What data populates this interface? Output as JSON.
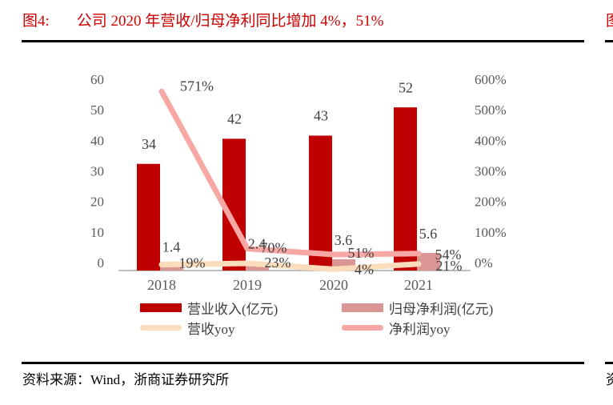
{
  "header": {
    "figure_label": "图4:",
    "title": "公司 2020 年营收/归母净利同比增加 4%，51%",
    "next_column_fragment": "图"
  },
  "footer": {
    "source": "资料来源：Wind，浙商证券研究所",
    "next_column_fragment": "资"
  },
  "colors": {
    "title_red": "#cc0000",
    "bar_revenue": "#c00000",
    "bar_profit": "#d99694",
    "line_revenue_yoy": "#fbdcbb",
    "line_profit_yoy": "#f7a8a5",
    "axis_text": "#595959",
    "data_label": "#404040",
    "axis_line": "#bfbfbf"
  },
  "chart_data": {
    "type": "bar",
    "subtype": "bar-line combo, dual axis",
    "categories": [
      "2018",
      "2019",
      "2020",
      "2021"
    ],
    "series": [
      {
        "name": "营业收入(亿元)",
        "kind": "bar",
        "axis": "left",
        "values": [
          34,
          42,
          43,
          52
        ],
        "labels": [
          "34",
          "42",
          "43",
          "52"
        ]
      },
      {
        "name": "归母净利润(亿元)",
        "kind": "bar",
        "axis": "left",
        "values": [
          1.4,
          2.4,
          3.6,
          5.6
        ],
        "labels": [
          "1.4",
          "2.4",
          "3.6",
          "5.6"
        ]
      },
      {
        "name": "营收yoy",
        "kind": "line",
        "axis": "right",
        "values": [
          19,
          23,
          4,
          21
        ],
        "labels": [
          "19%",
          "23%",
          "4%",
          "21%"
        ]
      },
      {
        "name": "净利润yoy",
        "kind": "line",
        "axis": "right",
        "values": [
          571,
          70,
          51,
          54
        ],
        "labels": [
          "571%",
          "70%",
          "51%",
          "54%"
        ]
      }
    ],
    "left_axis": {
      "min": 0,
      "max": 60,
      "step": 10,
      "ticks": [
        "60",
        "50",
        "40",
        "30",
        "20",
        "10",
        "0"
      ]
    },
    "right_axis": {
      "min": 0,
      "max": 600,
      "step": 100,
      "ticks": [
        "600%",
        "500%",
        "400%",
        "300%",
        "200%",
        "100%",
        "0%"
      ]
    },
    "grid": false,
    "legend_position": "bottom"
  }
}
